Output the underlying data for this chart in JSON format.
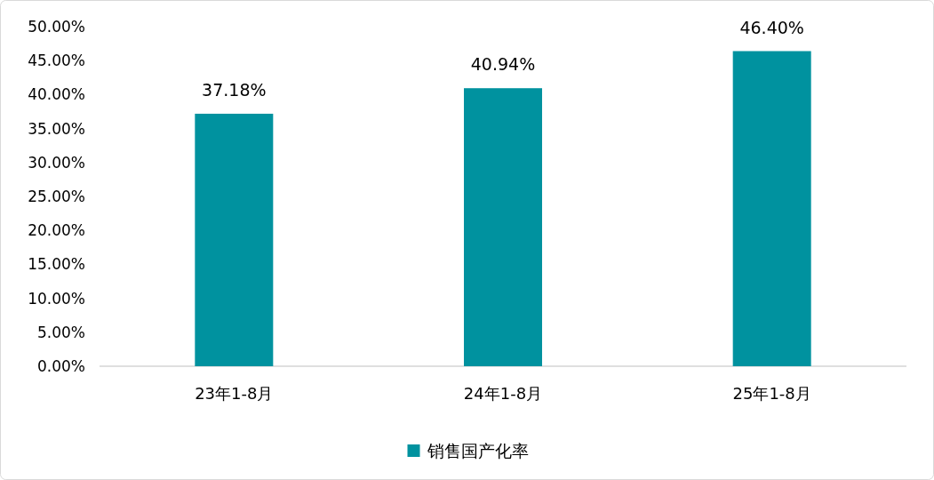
{
  "chart_data": {
    "type": "bar",
    "categories": [
      "23年1-8月",
      "24年1-8月",
      "25年1-8月"
    ],
    "series": [
      {
        "name": "销售国产化率",
        "color": "#00929f",
        "values": [
          37.18,
          40.94,
          46.4
        ],
        "value_labels": [
          "37.18%",
          "40.94%",
          "46.40%"
        ]
      }
    ],
    "ylim": [
      0,
      50
    ],
    "yticks": [
      {
        "value": 0,
        "label": "0.00%"
      },
      {
        "value": 5,
        "label": "5.00%"
      },
      {
        "value": 10,
        "label": "10.00%"
      },
      {
        "value": 15,
        "label": "15.00%"
      },
      {
        "value": 20,
        "label": "20.00%"
      },
      {
        "value": 25,
        "label": "25.00%"
      },
      {
        "value": 30,
        "label": "30.00%"
      },
      {
        "value": 35,
        "label": "35.00%"
      },
      {
        "value": 40,
        "label": "40.00%"
      },
      {
        "value": 45,
        "label": "45.00%"
      },
      {
        "value": 50,
        "label": "50.00%"
      }
    ],
    "legend": "bottom"
  }
}
